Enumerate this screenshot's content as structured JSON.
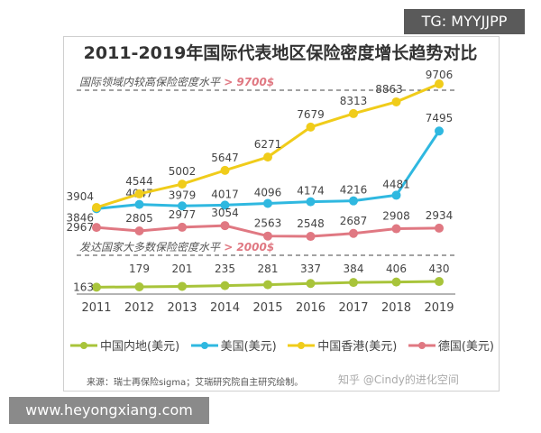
{
  "overlay": {
    "tg": "TG: MYYJJPP",
    "website": "www.heyongxiang.com"
  },
  "chart_data": {
    "type": "line",
    "title": "2011-2019年国际代表地区保险密度增长趋势对比",
    "categories": [
      "2011",
      "2012",
      "2013",
      "2014",
      "2015",
      "2016",
      "2017",
      "2018",
      "2019"
    ],
    "series": [
      {
        "name": "中国内地(美元)",
        "color": "#a8c43a",
        "values": [
          163,
          179,
          201,
          235,
          281,
          337,
          384,
          406,
          430
        ]
      },
      {
        "name": "美国(美元)",
        "color": "#2fb8e0",
        "values": [
          3846,
          4047,
          3979,
          4017,
          4096,
          4174,
          4216,
          4481,
          7495
        ]
      },
      {
        "name": "中国香港(美元)",
        "color": "#f0cc1a",
        "values": [
          3904,
          4544,
          5002,
          5647,
          6271,
          7679,
          8313,
          8863,
          9706
        ]
      },
      {
        "name": "德国(美元)",
        "color": "#e07882",
        "values": [
          2967,
          2805,
          2977,
          3054,
          2563,
          2548,
          2687,
          2908,
          2934
        ]
      }
    ],
    "reference_lines": [
      {
        "label": "国际领域内较高保险密度水平",
        "value_label": "> 9700$",
        "value": 9700
      },
      {
        "label": "发达国家大多数保险密度水平",
        "value_label": "> 2000$",
        "value": 2000
      }
    ],
    "grid": false,
    "legend": "bottom"
  },
  "footer": {
    "source": "来源：瑞士再保险sigma；艾瑞研究院自主研究绘制。",
    "watermark": "知乎 @Cindy的进化空间"
  }
}
